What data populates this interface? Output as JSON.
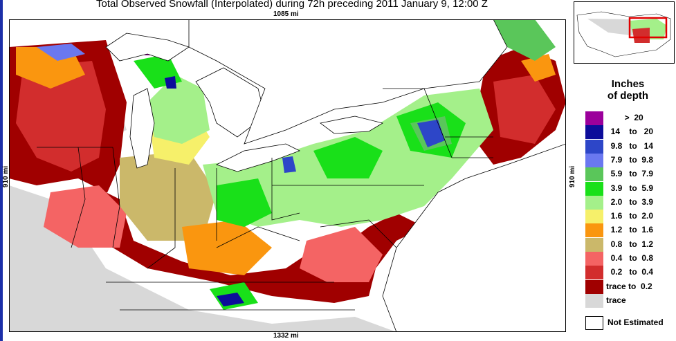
{
  "title": "Total Observed Snowfall (Interpolated) during 72h preceding 2011 January 9, 12:00 Z",
  "distances": {
    "top": "1085 mi",
    "bottom": "1332 mi",
    "left": "910 mi",
    "right": "910 mi"
  },
  "legend": {
    "title_line1": "Inches",
    "title_line2": "of depth",
    "classes": [
      {
        "label": "        >  20",
        "color": "#9b009b"
      },
      {
        "label": "  14    to   20",
        "color": "#0c0c9a"
      },
      {
        "label": "  9.8   to   14",
        "color": "#2d46c8"
      },
      {
        "label": "  7.9   to  9.8",
        "color": "#6a78f0"
      },
      {
        "label": "  5.9   to  7.9",
        "color": "#5ac65a"
      },
      {
        "label": "  3.9   to  5.9",
        "color": "#19e019"
      },
      {
        "label": "  2.0   to  3.9",
        "color": "#a4f08a"
      },
      {
        "label": "  1.6   to  2.0",
        "color": "#f6f06a"
      },
      {
        "label": "  1.2   to  1.6",
        "color": "#fa960f"
      },
      {
        "label": "  0.8   to  1.2",
        "color": "#cbb86a"
      },
      {
        "label": "  0.4   to  0.8",
        "color": "#f46464"
      },
      {
        "label": "  0.2   to  0.4",
        "color": "#d22d2d"
      },
      {
        "label": "trace to  0.2",
        "color": "#a00000"
      },
      {
        "label": "trace",
        "color": "#d8d8d8"
      }
    ],
    "not_estimated": "Not Estimated"
  }
}
